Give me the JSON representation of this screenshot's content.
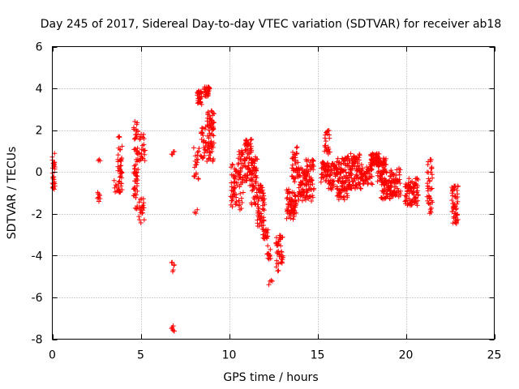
{
  "chart_data": {
    "type": "scatter",
    "title": "Day 245 of 2017, Sidereal Day-to-day VTEC variation (SDTVAR) for receiver ab18",
    "xlabel": "GPS time / hours",
    "ylabel": "SDTVAR / TECUs",
    "xlim": [
      0,
      25
    ],
    "ylim": [
      -8,
      6
    ],
    "xticks": [
      0,
      5,
      10,
      15,
      20,
      25
    ],
    "yticks": [
      -8,
      -6,
      -4,
      -2,
      0,
      2,
      4,
      6
    ],
    "grid": true,
    "marker": "+",
    "colors": {
      "points": "#ff0000",
      "grid": "#a0a0a0",
      "axis": "#000000"
    },
    "segments": [
      {
        "x0": 0.0,
        "x1": 0.15,
        "ymin": -0.9,
        "ymax": 0.9,
        "n": 28
      },
      {
        "x0": 2.55,
        "x1": 2.7,
        "ymin": -1.6,
        "ymax": -0.5,
        "n": 8
      },
      {
        "x0": 2.6,
        "x1": 2.7,
        "ymin": 0.5,
        "ymax": 0.7,
        "n": 3
      },
      {
        "x0": 3.5,
        "x1": 3.65,
        "ymin": -1.0,
        "ymax": -0.3,
        "n": 6
      },
      {
        "x0": 3.7,
        "x1": 3.95,
        "ymin": -1.0,
        "ymax": 1.7,
        "n": 45
      },
      {
        "x0": 4.6,
        "x1": 4.85,
        "ymin": -1.8,
        "ymax": 2.5,
        "n": 65
      },
      {
        "x0": 4.9,
        "x1": 5.2,
        "ymin": -2.5,
        "ymax": -1.2,
        "n": 20
      },
      {
        "x0": 4.9,
        "x1": 5.25,
        "ymin": 0.4,
        "ymax": 1.8,
        "n": 25
      },
      {
        "x0": 6.75,
        "x1": 6.9,
        "ymin": 0.8,
        "ymax": 1.0,
        "n": 4
      },
      {
        "x0": 6.75,
        "x1": 6.9,
        "ymin": -4.9,
        "ymax": -4.3,
        "n": 6
      },
      {
        "x0": 6.75,
        "x1": 6.9,
        "ymin": -7.9,
        "ymax": -7.3,
        "n": 6
      },
      {
        "x0": 8.05,
        "x1": 8.2,
        "ymin": -2.0,
        "ymax": -1.7,
        "n": 3
      },
      {
        "x0": 8.0,
        "x1": 8.3,
        "ymin": -0.4,
        "ymax": 1.3,
        "n": 20
      },
      {
        "x0": 8.2,
        "x1": 8.45,
        "ymin": 3.2,
        "ymax": 3.9,
        "n": 30
      },
      {
        "x0": 8.4,
        "x1": 8.7,
        "ymin": 0.6,
        "ymax": 2.2,
        "n": 25
      },
      {
        "x0": 8.6,
        "x1": 8.9,
        "ymin": 3.6,
        "ymax": 4.1,
        "n": 35
      },
      {
        "x0": 8.75,
        "x1": 9.15,
        "ymin": 0.5,
        "ymax": 3.0,
        "n": 70
      },
      {
        "x0": 10.1,
        "x1": 10.45,
        "ymin": -1.7,
        "ymax": 0.4,
        "n": 45
      },
      {
        "x0": 10.5,
        "x1": 10.8,
        "ymin": -1.9,
        "ymax": 1.2,
        "n": 45
      },
      {
        "x0": 10.85,
        "x1": 11.3,
        "ymin": -0.8,
        "ymax": 1.6,
        "n": 70
      },
      {
        "x0": 11.25,
        "x1": 11.6,
        "ymin": -1.7,
        "ymax": 0.8,
        "n": 55
      },
      {
        "x0": 11.6,
        "x1": 12.0,
        "ymin": -2.6,
        "ymax": -0.6,
        "n": 60
      },
      {
        "x0": 11.9,
        "x1": 12.2,
        "ymin": -3.2,
        "ymax": -2.7,
        "n": 20
      },
      {
        "x0": 12.15,
        "x1": 12.35,
        "ymin": -4.2,
        "ymax": -3.5,
        "n": 12
      },
      {
        "x0": 12.25,
        "x1": 12.45,
        "ymin": -5.8,
        "ymax": -5.0,
        "n": 4
      },
      {
        "x0": 12.65,
        "x1": 13.05,
        "ymin": -4.8,
        "ymax": -3.0,
        "n": 40
      },
      {
        "x0": 13.25,
        "x1": 13.8,
        "ymin": -2.3,
        "ymax": -0.8,
        "n": 70
      },
      {
        "x0": 13.55,
        "x1": 13.9,
        "ymin": -0.5,
        "ymax": 1.2,
        "n": 35
      },
      {
        "x0": 13.9,
        "x1": 14.4,
        "ymin": -1.4,
        "ymax": 0.3,
        "n": 60
      },
      {
        "x0": 14.35,
        "x1": 14.8,
        "ymin": -1.4,
        "ymax": 0.6,
        "n": 55
      },
      {
        "x0": 15.2,
        "x1": 15.6,
        "ymin": -0.5,
        "ymax": 0.5,
        "n": 40
      },
      {
        "x0": 15.4,
        "x1": 15.7,
        "ymin": 0.8,
        "ymax": 2.0,
        "n": 25
      },
      {
        "x0": 15.6,
        "x1": 16.1,
        "ymin": -0.9,
        "ymax": 0.5,
        "n": 55
      },
      {
        "x0": 16.1,
        "x1": 16.7,
        "ymin": -1.4,
        "ymax": 0.7,
        "n": 90
      },
      {
        "x0": 16.7,
        "x1": 17.5,
        "ymin": -0.8,
        "ymax": 0.9,
        "n": 110
      },
      {
        "x0": 17.5,
        "x1": 18.1,
        "ymin": -0.6,
        "ymax": 0.3,
        "n": 45
      },
      {
        "x0": 18.0,
        "x1": 18.5,
        "ymin": 0.3,
        "ymax": 0.9,
        "n": 65
      },
      {
        "x0": 18.4,
        "x1": 18.9,
        "ymin": -0.5,
        "ymax": 0.7,
        "n": 60
      },
      {
        "x0": 18.6,
        "x1": 19.2,
        "ymin": -1.3,
        "ymax": -0.4,
        "n": 55
      },
      {
        "x0": 19.1,
        "x1": 19.7,
        "ymin": -1.2,
        "ymax": 0.2,
        "n": 60
      },
      {
        "x0": 19.95,
        "x1": 20.7,
        "ymin": -1.6,
        "ymax": -0.3,
        "n": 85
      },
      {
        "x0": 21.2,
        "x1": 21.5,
        "ymin": -2.0,
        "ymax": 0.6,
        "n": 40
      },
      {
        "x0": 22.6,
        "x1": 22.95,
        "ymin": -2.5,
        "ymax": -0.6,
        "n": 55
      }
    ]
  }
}
